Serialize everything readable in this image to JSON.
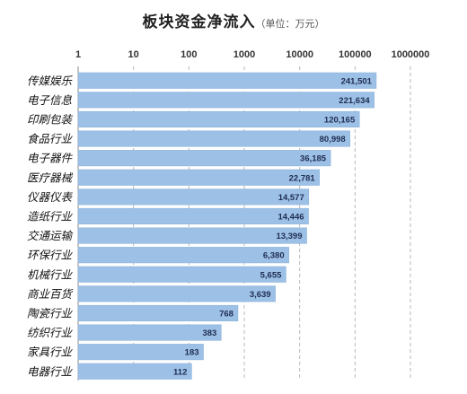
{
  "chart_data": {
    "type": "bar",
    "orientation": "horizontal",
    "title": "板块资金净流入",
    "subtitle": "（单位：万元）",
    "x_scale": "log",
    "x_ticks": [
      "1",
      "10",
      "100",
      "1000",
      "10000",
      "100000",
      "1000000"
    ],
    "xlim": [
      1,
      1000000
    ],
    "grid": true,
    "bar_color": "#9dc0e6",
    "categories": [
      "传媒娱乐",
      "电子信息",
      "印刷包装",
      "食品行业",
      "电子器件",
      "医疗器械",
      "仪器仪表",
      "造纸行业",
      "交通运输",
      "环保行业",
      "机械行业",
      "商业百货",
      "陶瓷行业",
      "纺织行业",
      "家具行业",
      "电器行业"
    ],
    "values": [
      241501,
      221634,
      120165,
      80998,
      36185,
      22781,
      14577,
      14446,
      13399,
      6380,
      5655,
      3639,
      768,
      383,
      183,
      112
    ],
    "value_labels": [
      "241,501",
      "221,634",
      "120,165",
      "80,998",
      "36,185",
      "22,781",
      "14,577",
      "14,446",
      "13,399",
      "6,380",
      "5,655",
      "3,639",
      "768",
      "383",
      "183",
      "112"
    ]
  }
}
